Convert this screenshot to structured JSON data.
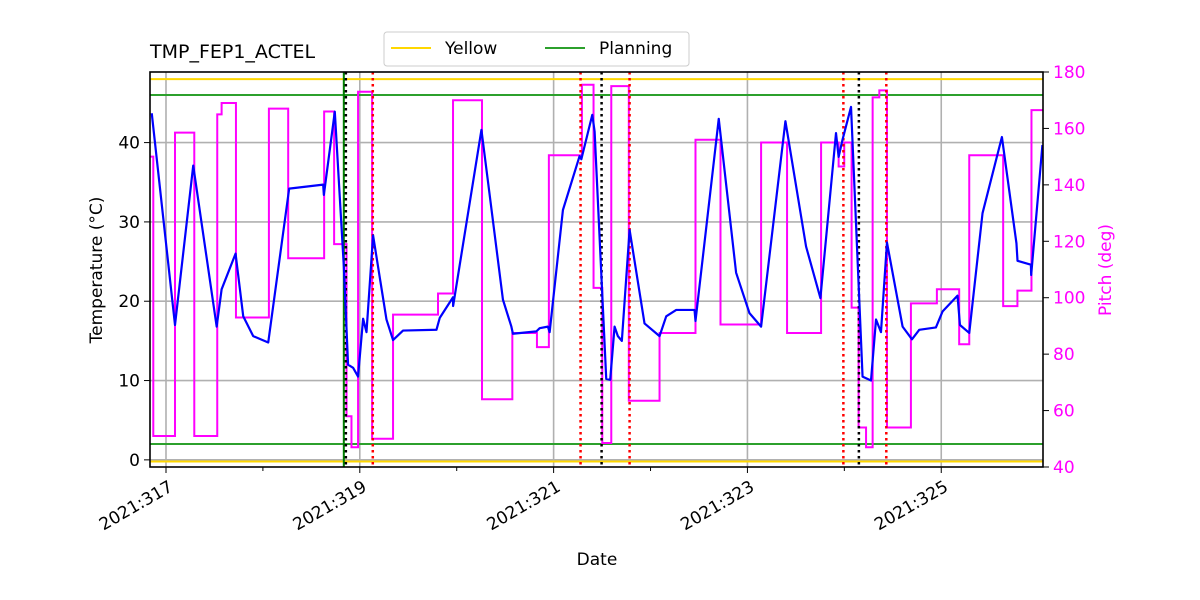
{
  "chart_data": {
    "type": "line",
    "title": "TMP_FEP1_ACTEL",
    "xlabel": "Date",
    "ylabel": "Temperature (°C)",
    "y2label": "Pitch (deg)",
    "xlim": [
      316.835,
      326.05
    ],
    "ylim": [
      -0.9,
      48.9
    ],
    "y2lim": [
      40,
      180
    ],
    "grid": true,
    "legend_placement": "top-center",
    "x_ticks": [
      {
        "v": 317,
        "label": "2021:317"
      },
      {
        "v": 319,
        "label": "2021:319"
      },
      {
        "v": 321,
        "label": "2021:321"
      },
      {
        "v": 323,
        "label": "2021:323"
      },
      {
        "v": 325,
        "label": "2021:325"
      }
    ],
    "x_minor_ticks": [
      318,
      320,
      322,
      324
    ],
    "y_ticks": [
      {
        "v": 0,
        "label": "0"
      },
      {
        "v": 10,
        "label": "10"
      },
      {
        "v": 20,
        "label": "20"
      },
      {
        "v": 30,
        "label": "30"
      },
      {
        "v": 40,
        "label": "40"
      }
    ],
    "y2_ticks": [
      {
        "v": 40,
        "label": "40"
      },
      {
        "v": 60,
        "label": "60"
      },
      {
        "v": 80,
        "label": "80"
      },
      {
        "v": 100,
        "label": "100"
      },
      {
        "v": 120,
        "label": "120"
      },
      {
        "v": 140,
        "label": "140"
      },
      {
        "v": 160,
        "label": "160"
      },
      {
        "v": 180,
        "label": "180"
      }
    ],
    "limits": [
      {
        "name": "Yellow",
        "color": "#FFD700",
        "values": [
          48,
          -0.2
        ]
      },
      {
        "name": "Planning",
        "color": "#2CA02C",
        "values": [
          46,
          2
        ]
      }
    ],
    "temperature": {
      "color": "#0000FF",
      "points": [
        [
          316.853,
          43.7
        ],
        [
          317.093,
          17.0
        ],
        [
          317.281,
          37.1
        ],
        [
          317.523,
          16.8
        ],
        [
          317.574,
          21.5
        ],
        [
          317.718,
          26.0
        ],
        [
          317.797,
          18.1
        ],
        [
          317.9,
          15.6
        ],
        [
          318.055,
          14.8
        ],
        [
          318.271,
          34.2
        ],
        [
          318.622,
          34.7
        ],
        [
          318.629,
          33.4
        ],
        [
          318.742,
          43.9
        ],
        [
          318.835,
          24.4
        ],
        [
          318.879,
          12.0
        ],
        [
          318.931,
          11.6
        ],
        [
          318.982,
          10.5
        ],
        [
          319.034,
          17.8
        ],
        [
          319.069,
          16.1
        ],
        [
          319.137,
          28.3
        ],
        [
          319.275,
          17.7
        ],
        [
          319.343,
          15.1
        ],
        [
          319.446,
          16.3
        ],
        [
          319.791,
          16.4
        ],
        [
          319.825,
          17.9
        ],
        [
          319.962,
          20.5
        ],
        [
          319.963,
          19.4
        ],
        [
          320.255,
          41.6
        ],
        [
          320.477,
          20.2
        ],
        [
          320.564,
          16.8
        ],
        [
          320.58,
          15.9
        ],
        [
          320.822,
          16.2
        ],
        [
          320.856,
          16.6
        ],
        [
          320.941,
          16.8
        ],
        [
          320.959,
          16.1
        ],
        [
          321.096,
          31.5
        ],
        [
          321.268,
          38.3
        ],
        [
          321.286,
          37.9
        ],
        [
          321.399,
          43.5
        ],
        [
          321.423,
          41.4
        ],
        [
          321.543,
          10.2
        ],
        [
          321.584,
          10.1
        ],
        [
          321.629,
          16.8
        ],
        [
          321.663,
          15.6
        ],
        [
          321.704,
          15.0
        ],
        [
          321.784,
          29.0
        ],
        [
          321.938,
          17.2
        ],
        [
          322.093,
          15.6
        ],
        [
          322.162,
          18.1
        ],
        [
          322.265,
          18.9
        ],
        [
          322.454,
          18.9
        ],
        [
          322.464,
          17.5
        ],
        [
          322.704,
          43.0
        ],
        [
          322.883,
          23.6
        ],
        [
          323.021,
          18.5
        ],
        [
          323.141,
          16.8
        ],
        [
          323.392,
          42.7
        ],
        [
          323.605,
          26.9
        ],
        [
          323.753,
          20.4
        ],
        [
          323.914,
          41.2
        ],
        [
          323.941,
          38.2
        ],
        [
          323.982,
          40.4
        ],
        [
          324.069,
          44.5
        ],
        [
          324.188,
          10.5
        ],
        [
          324.275,
          10.0
        ],
        [
          324.327,
          17.7
        ],
        [
          324.378,
          16.1
        ],
        [
          324.44,
          27.4
        ],
        [
          324.601,
          16.8
        ],
        [
          324.698,
          15.2
        ],
        [
          324.773,
          16.4
        ],
        [
          324.945,
          16.7
        ],
        [
          325.013,
          18.7
        ],
        [
          325.168,
          20.7
        ],
        [
          325.193,
          17.0
        ],
        [
          325.289,
          16.0
        ],
        [
          325.426,
          31.1
        ],
        [
          325.626,
          40.7
        ],
        [
          325.776,
          27.3
        ],
        [
          325.787,
          25.1
        ],
        [
          325.925,
          24.6
        ],
        [
          325.928,
          23.3
        ],
        [
          326.044,
          39.7
        ]
      ]
    },
    "pitch": {
      "color": "#FF00FF",
      "steps": [
        [
          316.835,
          150
        ],
        [
          316.869,
          51
        ],
        [
          317.093,
          158.5
        ],
        [
          317.292,
          51
        ],
        [
          317.529,
          165
        ],
        [
          317.574,
          169
        ],
        [
          317.722,
          93
        ],
        [
          318.062,
          167
        ],
        [
          318.261,
          114
        ],
        [
          318.632,
          166
        ],
        [
          318.735,
          119
        ],
        [
          318.863,
          58
        ],
        [
          318.914,
          47
        ],
        [
          318.982,
          173
        ],
        [
          319.127,
          50
        ],
        [
          319.343,
          94
        ],
        [
          319.807,
          101.5
        ],
        [
          319.962,
          170
        ],
        [
          320.261,
          64
        ],
        [
          320.574,
          87.5
        ],
        [
          320.828,
          82.5
        ],
        [
          320.951,
          150.5
        ],
        [
          321.292,
          175.5
        ],
        [
          321.412,
          103.5
        ],
        [
          321.502,
          48.5
        ],
        [
          321.595,
          175
        ],
        [
          321.776,
          63.5
        ],
        [
          322.093,
          87.5
        ],
        [
          322.464,
          156
        ],
        [
          322.722,
          90.5
        ],
        [
          323.141,
          155
        ],
        [
          323.409,
          87.5
        ],
        [
          323.76,
          155
        ],
        [
          323.941,
          146.5
        ],
        [
          323.999,
          155
        ],
        [
          324.075,
          96.5
        ],
        [
          324.147,
          54
        ],
        [
          324.224,
          47
        ],
        [
          324.292,
          171
        ],
        [
          324.361,
          173.5
        ],
        [
          324.44,
          54
        ],
        [
          324.687,
          98
        ],
        [
          324.955,
          103
        ],
        [
          325.185,
          83.5
        ],
        [
          325.289,
          150.5
        ],
        [
          325.639,
          97
        ],
        [
          325.786,
          102.5
        ],
        [
          325.931,
          166.5
        ]
      ]
    },
    "vertical_lines": [
      {
        "date": 318.835,
        "color": "#007F00",
        "style": "solid"
      },
      {
        "date": 318.856,
        "color": "#000000",
        "style": "dotted"
      },
      {
        "date": 319.134,
        "color": "#FF0000",
        "style": "dotted"
      },
      {
        "date": 321.278,
        "color": "#FF0000",
        "style": "dotted"
      },
      {
        "date": 321.495,
        "color": "#000000",
        "style": "dotted"
      },
      {
        "date": 321.784,
        "color": "#FF0000",
        "style": "dotted"
      },
      {
        "date": 323.99,
        "color": "#FF0000",
        "style": "dotted"
      },
      {
        "date": 324.15,
        "color": "#000000",
        "style": "dotted"
      },
      {
        "date": 324.433,
        "color": "#FF0000",
        "style": "dotted"
      }
    ]
  }
}
